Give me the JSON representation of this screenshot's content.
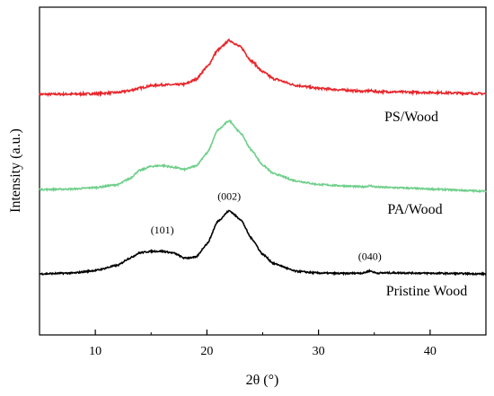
{
  "chart_data": {
    "type": "line",
    "title": "",
    "xlabel": "2θ (°)",
    "ylabel": "Intensity (a.u.)",
    "xlim": [
      5,
      45
    ],
    "x_ticks": [
      10,
      20,
      30,
      40
    ],
    "y_ticks_shown": false,
    "grid": false,
    "x": [
      5,
      8,
      10,
      12,
      13,
      14,
      15,
      16,
      17,
      18,
      19,
      20,
      21,
      22,
      23,
      24,
      25,
      26,
      28,
      30,
      32,
      34,
      34.6,
      35.2,
      37,
      40,
      45
    ],
    "series": [
      {
        "name": "PS/Wood",
        "color": "#e8262b",
        "values": [
          0,
          0.03,
          0.1,
          0.3,
          0.6,
          1.05,
          1.45,
          1.6,
          1.6,
          1.7,
          2.5,
          4.6,
          7.5,
          9.1,
          8.0,
          5.6,
          3.8,
          2.6,
          1.5,
          1.0,
          0.75,
          0.5,
          0.6,
          0.45,
          0.4,
          0.3,
          0.1
        ]
      },
      {
        "name": "PA/Wood",
        "color": "#6fcf8a",
        "values": [
          0,
          0.1,
          0.45,
          1.1,
          2.4,
          4.4,
          5.3,
          5.5,
          5.1,
          4.6,
          5.4,
          8.3,
          13.7,
          15.8,
          13.0,
          9.0,
          5.6,
          3.6,
          1.95,
          1.15,
          0.85,
          0.6,
          0.85,
          0.55,
          0.4,
          0.1,
          -0.4
        ]
      },
      {
        "name": "Pristine Wood",
        "color": "#000000",
        "values": [
          0,
          0.2,
          0.8,
          2.0,
          3.6,
          4.95,
          5.3,
          5.3,
          4.9,
          3.7,
          3.9,
          7.0,
          12.4,
          14.8,
          12.8,
          8.3,
          4.6,
          2.4,
          0.6,
          0.2,
          0.1,
          0.2,
          0.7,
          0.2,
          0.25,
          0.15,
          0.0
        ]
      }
    ],
    "annotations": [
      {
        "text": "(101)",
        "x": 16,
        "series": "Pristine Wood"
      },
      {
        "text": "(002)",
        "x": 22,
        "series": "Pristine Wood"
      },
      {
        "text": "(040)",
        "x": 34.6,
        "series": "Pristine Wood"
      }
    ]
  }
}
